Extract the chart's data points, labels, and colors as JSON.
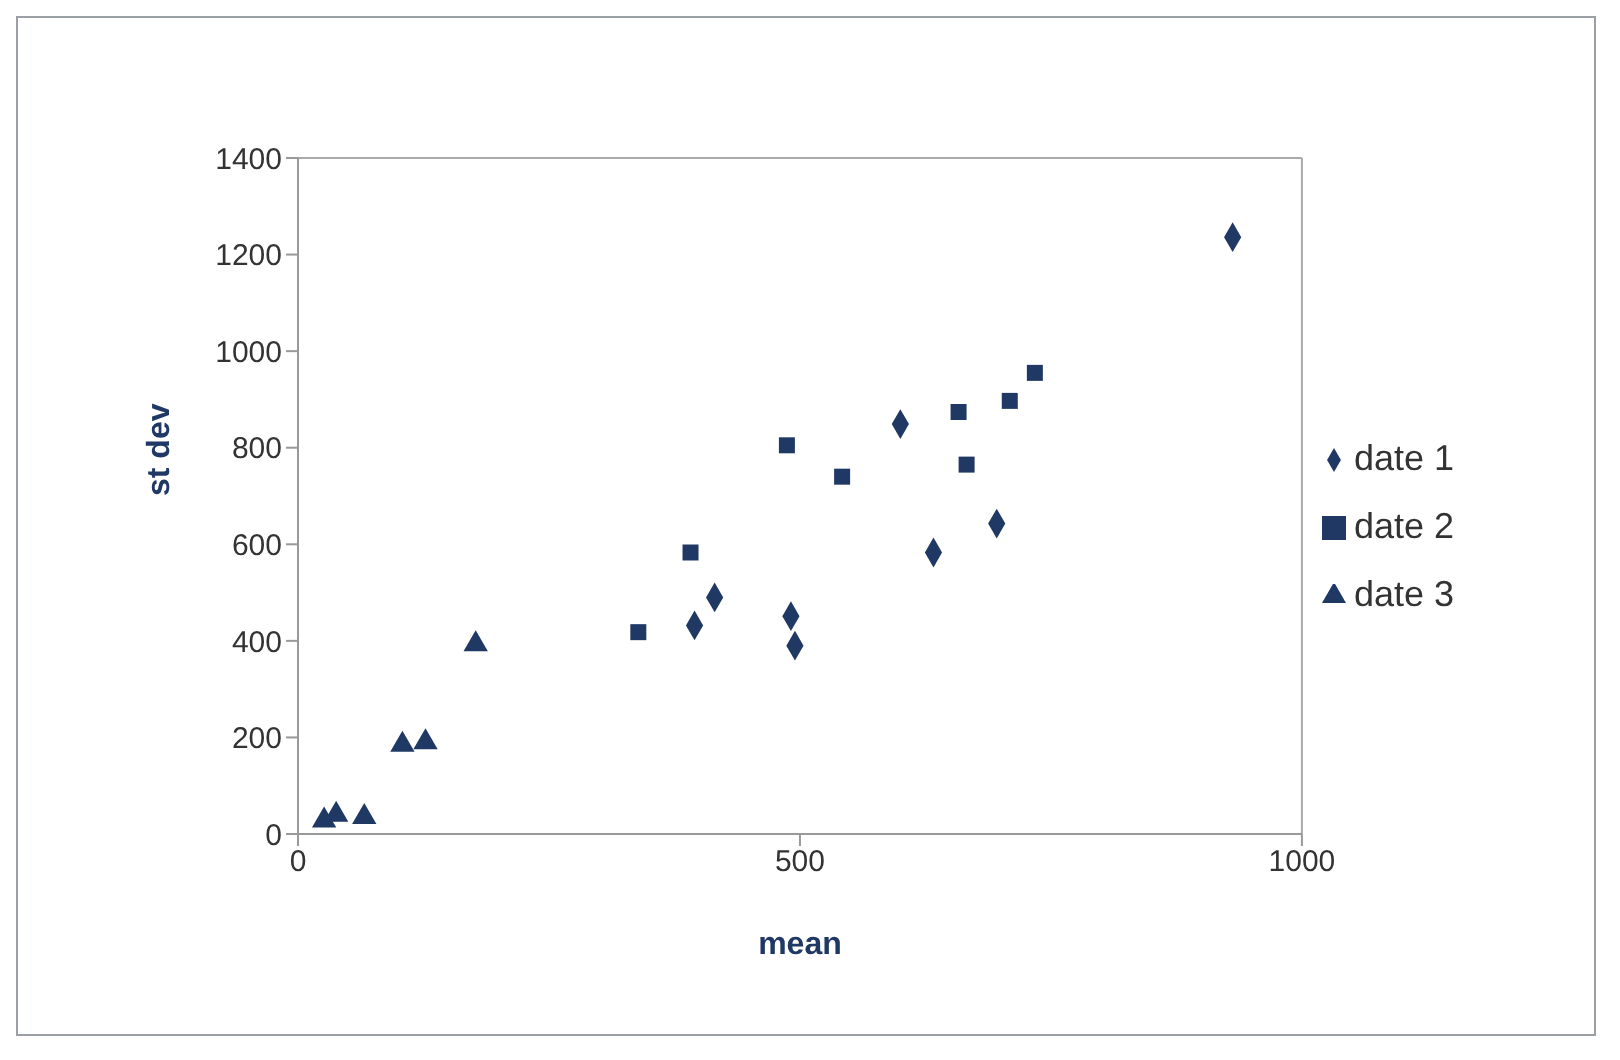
{
  "chart_data": {
    "type": "scatter",
    "xlabel": "mean",
    "ylabel": "st  dev",
    "xlim": [
      0,
      1000
    ],
    "xticks": [
      0,
      500,
      1000
    ],
    "ylim": [
      0,
      1400
    ],
    "yticks": [
      0,
      200,
      400,
      600,
      800,
      1000,
      1200,
      1400
    ],
    "grid": false,
    "legend": "right",
    "series": [
      {
        "name": "date  1",
        "color": "#1f3864",
        "marker": "diamond",
        "x": [
          931,
          600,
          696,
          633,
          415,
          395,
          491,
          495
        ],
        "values": [
          1236,
          849,
          643,
          583,
          490,
          432,
          451,
          390
        ]
      },
      {
        "name": "date  2",
        "color": "#1f3864",
        "marker": "square",
        "x": [
          487,
          542,
          658,
          666,
          709,
          734,
          391,
          339
        ],
        "values": [
          805,
          740,
          874,
          765,
          897,
          955,
          583,
          418
        ]
      },
      {
        "name": "date  3",
        "color": "#1f3864",
        "marker": "triangle",
        "x": [
          177,
          104,
          127,
          26,
          38,
          66
        ],
        "values": [
          393,
          185,
          190,
          28,
          40,
          35
        ]
      }
    ]
  }
}
